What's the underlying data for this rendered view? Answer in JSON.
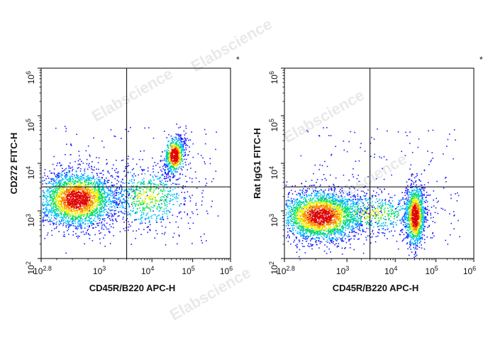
{
  "watermark": "Elabscience",
  "chart_data": [
    {
      "type": "scatter",
      "subtype": "flow-cytometry-density-dot-plot",
      "marker": "*",
      "xlabel": "CD45R/B220 APC-H",
      "ylabel": "CD272 FITC-H",
      "x_scale": "biexponential",
      "y_scale": "log",
      "xlim": [
        -631,
        1000000
      ],
      "ylim": [
        100,
        1000000
      ],
      "x_ticks": [
        {
          "base": "-10",
          "exp": "2.8",
          "value": -631
        },
        {
          "base": "10",
          "exp": "3",
          "value": 1000
        },
        {
          "base": "10",
          "exp": "4",
          "value": 10000
        },
        {
          "base": "10",
          "exp": "5",
          "value": 100000
        },
        {
          "base": "10",
          "exp": "6",
          "value": 1000000
        }
      ],
      "y_ticks": [
        {
          "base": "10",
          "exp": "2",
          "value": 100
        },
        {
          "base": "10",
          "exp": "3",
          "value": 1000
        },
        {
          "base": "10",
          "exp": "4",
          "value": 10000
        },
        {
          "base": "10",
          "exp": "5",
          "value": 100000
        },
        {
          "base": "10",
          "exp": "6",
          "value": 1000000
        }
      ],
      "quadrant_gates": {
        "x": 3000,
        "y": 3200
      },
      "populations": [
        {
          "x_center": 300,
          "y_center": 1800,
          "density": "high"
        },
        {
          "x_center": 35000,
          "y_center": 15000,
          "density": "high"
        },
        {
          "x_center": 8000,
          "y_center": 2000,
          "density": "low"
        }
      ],
      "grid": false,
      "colormap": [
        "#1a1aff",
        "#00c0ff",
        "#00e060",
        "#f0f000",
        "#ff8800",
        "#e00000"
      ]
    },
    {
      "type": "scatter",
      "subtype": "flow-cytometry-density-dot-plot",
      "marker": "*",
      "xlabel": "CD45R/B220 APC-H",
      "ylabel": "Rat IgG1 FITC-H",
      "x_scale": "biexponential",
      "y_scale": "log",
      "xlim": [
        -631,
        1000000
      ],
      "ylim": [
        100,
        1000000
      ],
      "x_ticks": [
        {
          "base": "-10",
          "exp": "2.8",
          "value": -631
        },
        {
          "base": "10",
          "exp": "3",
          "value": 1000
        },
        {
          "base": "10",
          "exp": "4",
          "value": 10000
        },
        {
          "base": "10",
          "exp": "5",
          "value": 100000
        },
        {
          "base": "10",
          "exp": "6",
          "value": 1000000
        }
      ],
      "y_ticks": [
        {
          "base": "10",
          "exp": "2",
          "value": 100
        },
        {
          "base": "10",
          "exp": "3",
          "value": 1000
        },
        {
          "base": "10",
          "exp": "4",
          "value": 10000
        },
        {
          "base": "10",
          "exp": "5",
          "value": 100000
        },
        {
          "base": "10",
          "exp": "6",
          "value": 1000000
        }
      ],
      "quadrant_gates": {
        "x": 3000,
        "y": 3200
      },
      "populations": [
        {
          "x_center": 300,
          "y_center": 800,
          "density": "high"
        },
        {
          "x_center": 30000,
          "y_center": 800,
          "density": "high"
        },
        {
          "x_center": 3000,
          "y_center": 900,
          "density": "low"
        }
      ],
      "grid": false,
      "colormap": [
        "#1a1aff",
        "#00c0ff",
        "#00e060",
        "#f0f000",
        "#ff8800",
        "#e00000"
      ]
    }
  ]
}
